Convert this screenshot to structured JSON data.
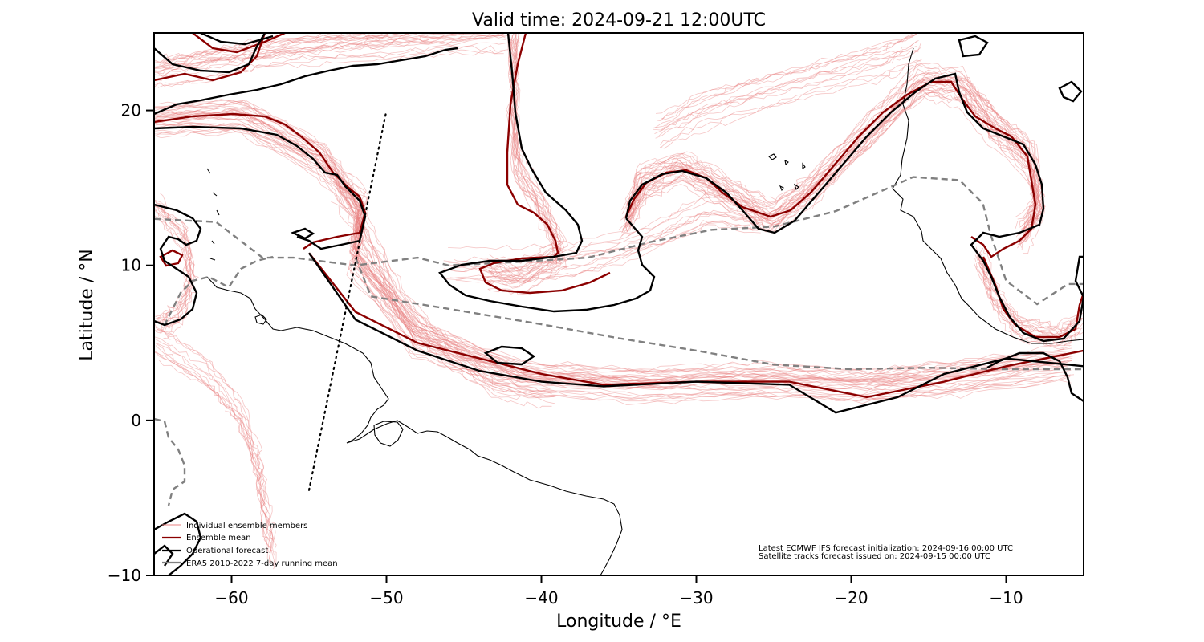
{
  "title": "Valid time: 2024-09-21 12:00UTC",
  "xaxis": {
    "label": "Longitude / °E",
    "range": [
      -65,
      -5
    ],
    "ticks": [
      -60,
      -50,
      -40,
      -30,
      -20,
      -10
    ],
    "tick_labels": [
      "−60",
      "−50",
      "−40",
      "−30",
      "−20",
      "−10"
    ]
  },
  "yaxis": {
    "label": "Latitude / °N",
    "range": [
      -10,
      25
    ],
    "ticks": [
      -10,
      0,
      10,
      20
    ],
    "tick_labels": [
      "−10",
      "0",
      "10",
      "20"
    ]
  },
  "legend": {
    "placement": "bottom-left",
    "items": [
      {
        "label": "Individual ensemble members",
        "style": "thin-red",
        "color": "#e88080"
      },
      {
        "label": "Ensemble mean",
        "style": "dark-red",
        "color": "#8b0000"
      },
      {
        "label": "Operational forecast",
        "style": "black",
        "color": "#000000"
      },
      {
        "label": "ERA5 2010-2022 7-day running mean",
        "style": "gray-dashed",
        "color": "#808080"
      }
    ]
  },
  "info": {
    "line1": "Latest ECMWF IFS forecast initialization: 2024-09-16 00:00 UTC",
    "line2": "Satellite tracks forecast issued on: 2024-09-15 00:00 UTC"
  },
  "colors": {
    "ensemble_members": "#e88080",
    "ensemble_mean": "#8b0000",
    "operational": "#000000",
    "era5_mean": "#808080",
    "coastline": "#000000"
  },
  "chart_data": {
    "type": "map-contour",
    "satellite_track": [
      [
        -55,
        -4.5
      ],
      [
        -50,
        20
      ]
    ],
    "era5_mean_contour": [
      [
        -65,
        13
      ],
      [
        -61,
        12.8
      ],
      [
        -58,
        10.5
      ],
      [
        -56,
        10.5
      ],
      [
        -52,
        10
      ],
      [
        -48,
        10.5
      ],
      [
        -46,
        10
      ],
      [
        -42,
        10.2
      ],
      [
        -37,
        10.5
      ],
      [
        -33,
        11.5
      ],
      [
        -29,
        12.3
      ],
      [
        -25,
        12.5
      ],
      [
        -21,
        13.5
      ],
      [
        -16,
        15.7
      ],
      [
        -13,
        15.5
      ],
      [
        -11.5,
        14
      ],
      [
        -11,
        12
      ],
      [
        -10,
        9
      ],
      [
        -8,
        7.5
      ],
      [
        -6,
        8.8
      ],
      [
        -5,
        8.8
      ]
    ],
    "era5_mean_contour_south": [
      [
        -52,
        10.5
      ],
      [
        -51,
        8
      ],
      [
        -46,
        7.2
      ],
      [
        -40,
        6.2
      ],
      [
        -35,
        5.3
      ],
      [
        -30,
        4.5
      ],
      [
        -25,
        3.6
      ],
      [
        -20,
        3.3
      ],
      [
        -15,
        3.4
      ],
      [
        -10,
        3.3
      ],
      [
        -5,
        3.3
      ]
    ],
    "ensemble_mean_contour": [
      [
        -55,
        10.8
      ],
      [
        -52,
        7
      ],
      [
        -48,
        5
      ],
      [
        -44,
        4
      ],
      [
        -40,
        3
      ],
      [
        -36,
        2.3
      ],
      [
        -30,
        2.5
      ],
      [
        -24,
        2.5
      ],
      [
        -19,
        1.5
      ],
      [
        -14,
        2.5
      ],
      [
        -10,
        3.5
      ],
      [
        -5,
        4.5
      ]
    ],
    "operational_contour": [
      [
        -55,
        10.8
      ],
      [
        -52,
        6.5
      ],
      [
        -48,
        4.5
      ],
      [
        -44,
        3.2
      ],
      [
        -40,
        2.5
      ],
      [
        -36,
        2.2
      ],
      [
        -30,
        2.5
      ],
      [
        -24,
        2.3
      ],
      [
        -21,
        0.5
      ],
      [
        -17,
        1.5
      ],
      [
        -14,
        3
      ],
      [
        -10,
        4
      ],
      [
        -5,
        3.5
      ]
    ]
  }
}
